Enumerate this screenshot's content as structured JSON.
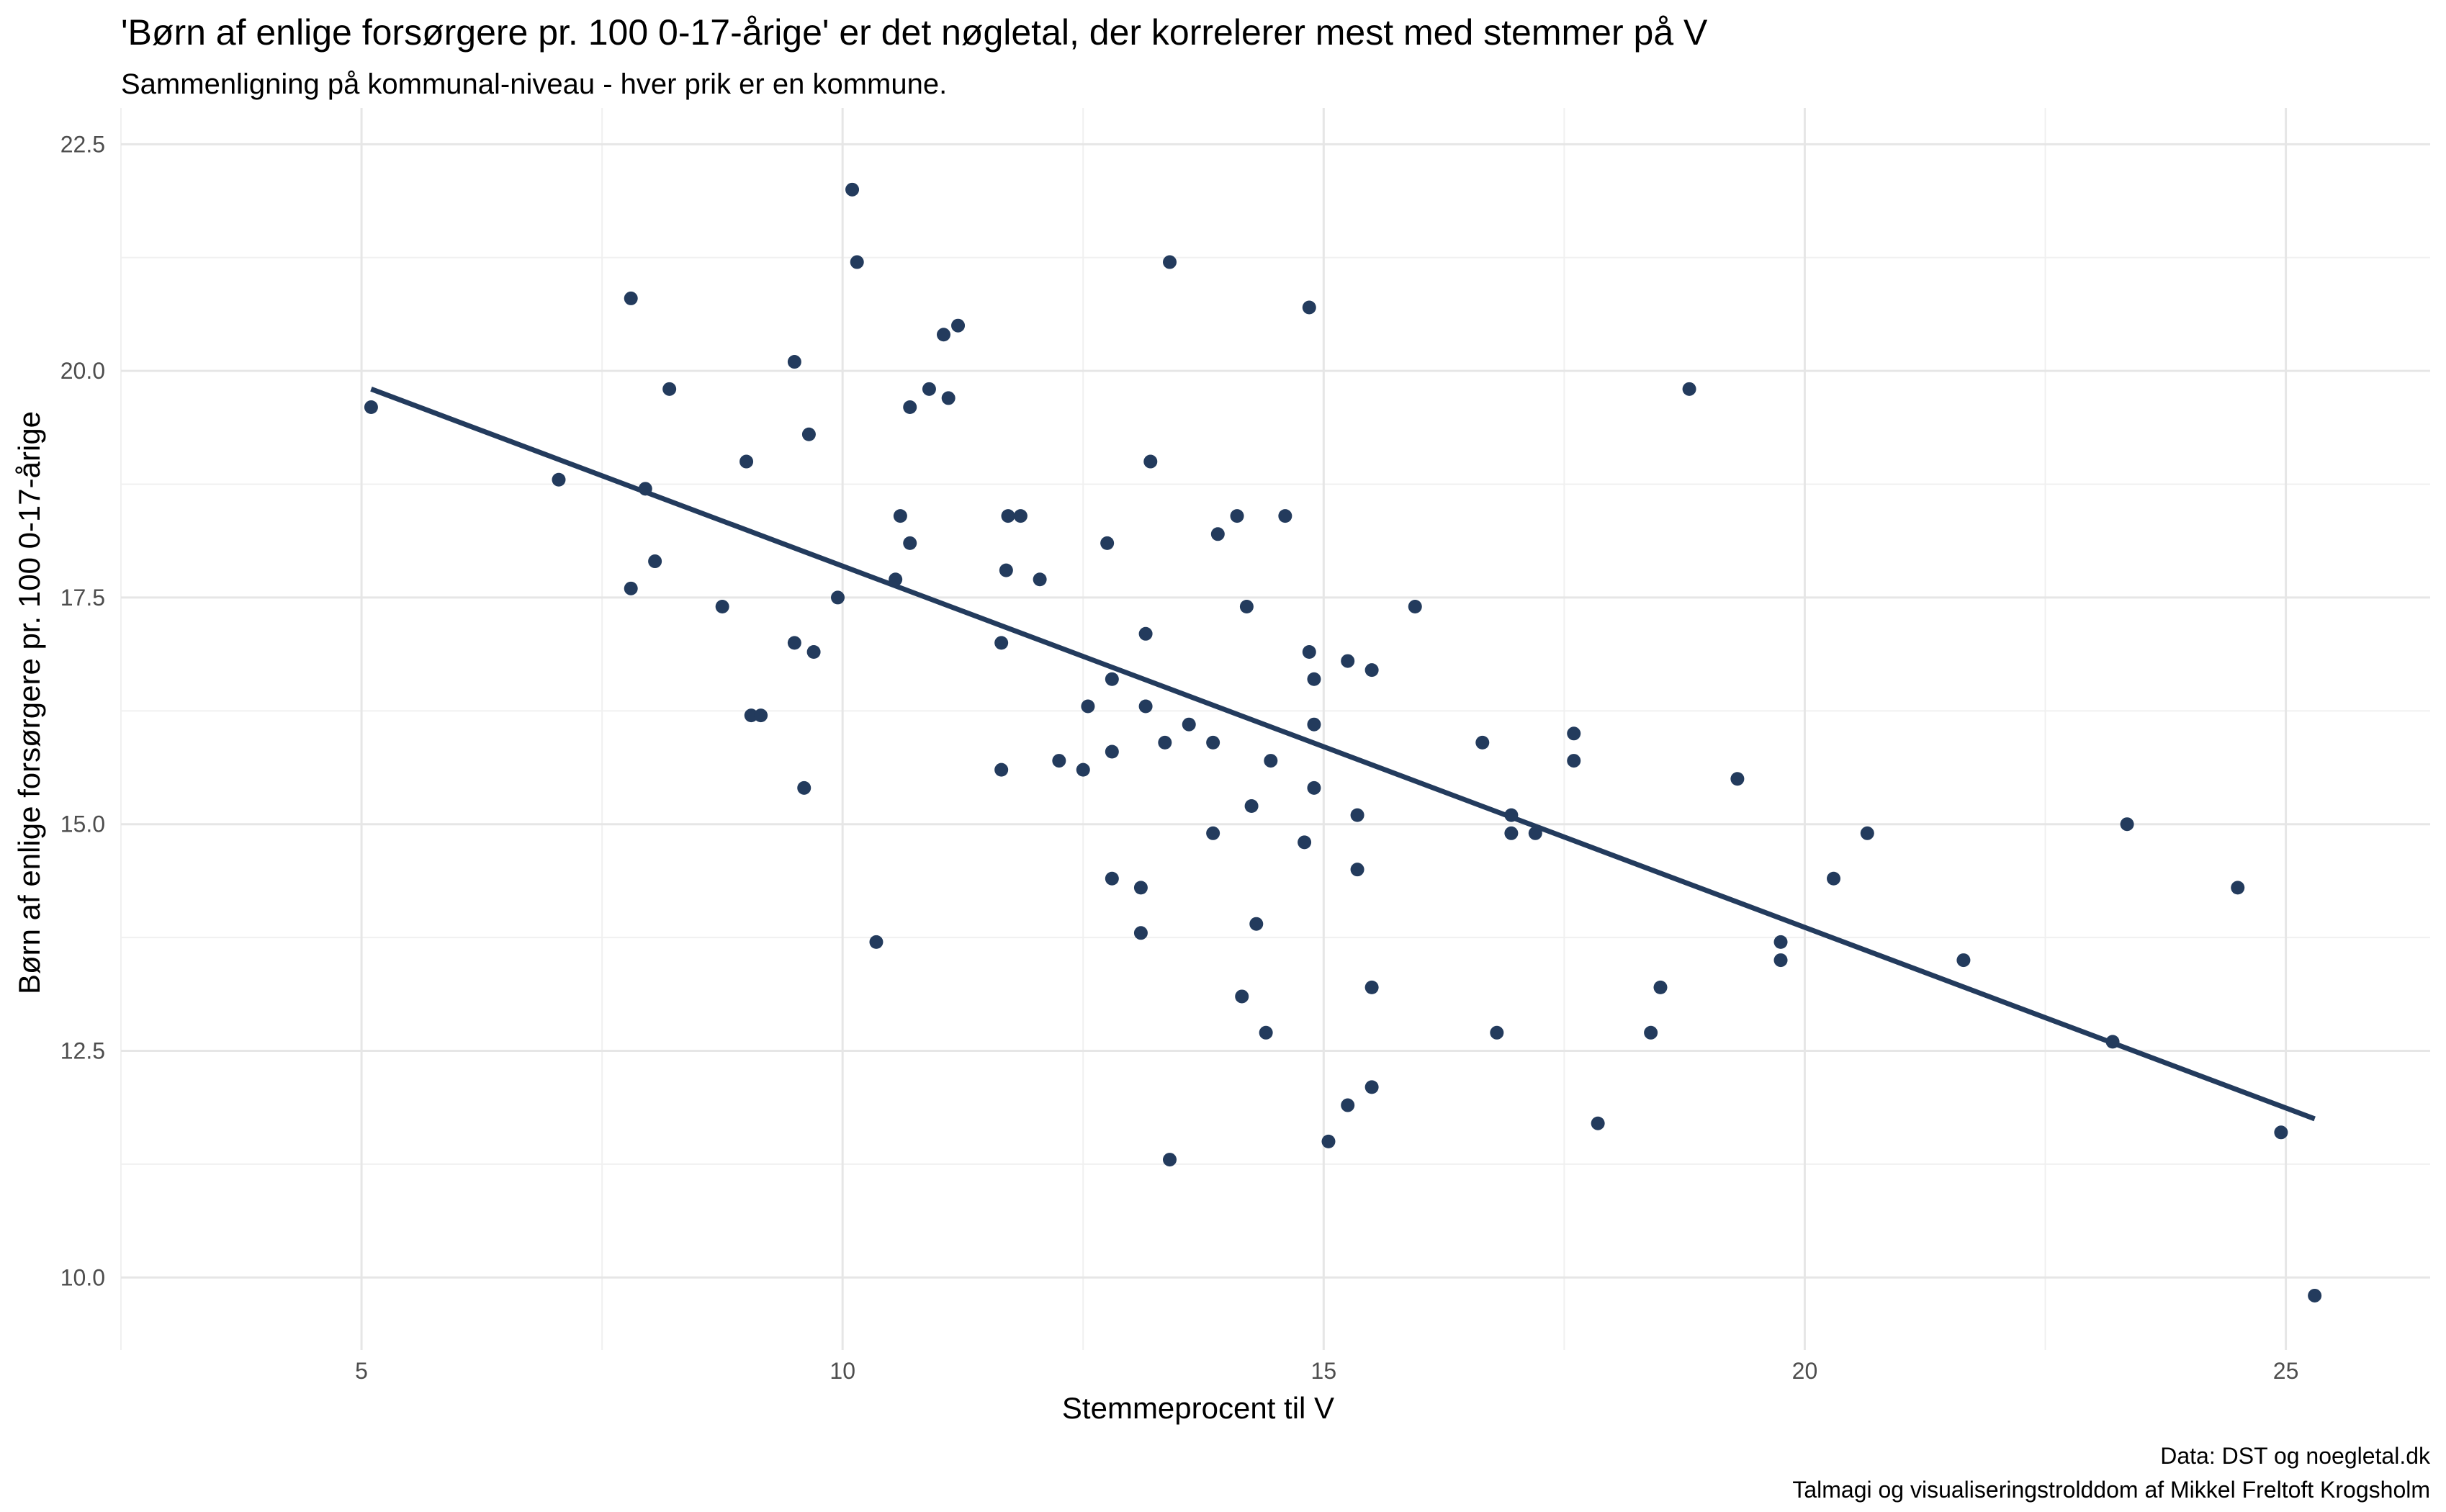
{
  "chart_data": {
    "type": "scatter",
    "title": "'Børn af enlige forsørgere pr. 100 0-17-årige' er det nøgletal, der korrelerer mest med stemmer på V",
    "subtitle": "Sammenligning på kommunal-niveau - hver prik er en kommune.",
    "xlabel": "Stemmeprocent til V",
    "ylabel": "Børn af enlige forsørgere pr. 100 0-17-årige",
    "caption_lines": [
      "Data: DST og noegletal.dk",
      "Talmagi og visualiseringstrolddom af Mikkel Freltoft Krogsholm"
    ],
    "xlim": [
      2.5,
      26.5
    ],
    "ylim": [
      9.2,
      22.9
    ],
    "x_ticks": [
      5,
      10,
      15,
      20,
      25
    ],
    "x_tick_labels": [
      "5",
      "10",
      "15",
      "20",
      "25"
    ],
    "y_ticks": [
      10.0,
      12.5,
      15.0,
      17.5,
      20.0,
      22.5
    ],
    "y_tick_labels": [
      "10.0",
      "12.5",
      "15.0",
      "17.5",
      "20.0",
      "22.5"
    ],
    "grid": true,
    "point_color": "#233B5D",
    "line_color": "#233B5D",
    "trend_line": {
      "x": [
        5.1,
        25.3
      ],
      "y": [
        19.8,
        11.75
      ]
    },
    "points": [
      {
        "x": 5.1,
        "y": 19.6
      },
      {
        "x": 7.05,
        "y": 18.8
      },
      {
        "x": 7.8,
        "y": 20.8
      },
      {
        "x": 7.8,
        "y": 17.6
      },
      {
        "x": 7.95,
        "y": 18.7
      },
      {
        "x": 8.05,
        "y": 17.9
      },
      {
        "x": 8.2,
        "y": 19.8
      },
      {
        "x": 8.75,
        "y": 17.4
      },
      {
        "x": 9.0,
        "y": 19.0
      },
      {
        "x": 9.05,
        "y": 16.2
      },
      {
        "x": 9.15,
        "y": 16.2
      },
      {
        "x": 9.5,
        "y": 20.1
      },
      {
        "x": 9.5,
        "y": 17.0
      },
      {
        "x": 9.6,
        "y": 15.4
      },
      {
        "x": 9.65,
        "y": 19.3
      },
      {
        "x": 9.7,
        "y": 16.9
      },
      {
        "x": 9.95,
        "y": 17.5
      },
      {
        "x": 10.1,
        "y": 22.0
      },
      {
        "x": 10.15,
        "y": 21.2
      },
      {
        "x": 10.35,
        "y": 13.7
      },
      {
        "x": 10.55,
        "y": 17.7
      },
      {
        "x": 10.6,
        "y": 18.4
      },
      {
        "x": 10.7,
        "y": 19.6
      },
      {
        "x": 10.7,
        "y": 18.1
      },
      {
        "x": 10.9,
        "y": 19.8
      },
      {
        "x": 11.05,
        "y": 20.4
      },
      {
        "x": 11.1,
        "y": 19.7
      },
      {
        "x": 11.2,
        "y": 20.5
      },
      {
        "x": 11.65,
        "y": 17.0
      },
      {
        "x": 11.65,
        "y": 15.6
      },
      {
        "x": 11.7,
        "y": 17.8
      },
      {
        "x": 11.72,
        "y": 18.4
      },
      {
        "x": 11.85,
        "y": 18.4
      },
      {
        "x": 12.05,
        "y": 17.7
      },
      {
        "x": 12.25,
        "y": 15.7
      },
      {
        "x": 12.5,
        "y": 15.6
      },
      {
        "x": 12.55,
        "y": 16.3
      },
      {
        "x": 12.75,
        "y": 18.1
      },
      {
        "x": 12.8,
        "y": 16.6
      },
      {
        "x": 12.8,
        "y": 15.8
      },
      {
        "x": 12.8,
        "y": 14.4
      },
      {
        "x": 13.1,
        "y": 14.3
      },
      {
        "x": 13.1,
        "y": 13.8
      },
      {
        "x": 13.15,
        "y": 17.1
      },
      {
        "x": 13.15,
        "y": 16.3
      },
      {
        "x": 13.2,
        "y": 19.0
      },
      {
        "x": 13.35,
        "y": 15.9
      },
      {
        "x": 13.4,
        "y": 21.2
      },
      {
        "x": 13.4,
        "y": 11.3
      },
      {
        "x": 13.6,
        "y": 16.1
      },
      {
        "x": 13.85,
        "y": 15.9
      },
      {
        "x": 13.85,
        "y": 14.9
      },
      {
        "x": 13.9,
        "y": 18.2
      },
      {
        "x": 14.1,
        "y": 18.4
      },
      {
        "x": 14.15,
        "y": 13.1
      },
      {
        "x": 14.2,
        "y": 17.4
      },
      {
        "x": 14.25,
        "y": 15.2
      },
      {
        "x": 14.3,
        "y": 13.9
      },
      {
        "x": 14.4,
        "y": 12.7
      },
      {
        "x": 14.45,
        "y": 15.7
      },
      {
        "x": 14.6,
        "y": 18.4
      },
      {
        "x": 14.8,
        "y": 14.8
      },
      {
        "x": 14.85,
        "y": 20.7
      },
      {
        "x": 14.85,
        "y": 16.9
      },
      {
        "x": 14.9,
        "y": 16.6
      },
      {
        "x": 14.9,
        "y": 16.1
      },
      {
        "x": 14.9,
        "y": 15.4
      },
      {
        "x": 15.05,
        "y": 11.5
      },
      {
        "x": 15.25,
        "y": 16.8
      },
      {
        "x": 15.25,
        "y": 11.9
      },
      {
        "x": 15.35,
        "y": 15.1
      },
      {
        "x": 15.35,
        "y": 14.5
      },
      {
        "x": 15.5,
        "y": 16.7
      },
      {
        "x": 15.5,
        "y": 13.2
      },
      {
        "x": 15.5,
        "y": 12.1
      },
      {
        "x": 15.95,
        "y": 17.4
      },
      {
        "x": 16.65,
        "y": 15.9
      },
      {
        "x": 16.8,
        "y": 12.7
      },
      {
        "x": 16.95,
        "y": 15.1
      },
      {
        "x": 16.95,
        "y": 14.9
      },
      {
        "x": 17.2,
        "y": 14.9
      },
      {
        "x": 17.6,
        "y": 16.0
      },
      {
        "x": 17.6,
        "y": 15.7
      },
      {
        "x": 17.85,
        "y": 11.7
      },
      {
        "x": 18.4,
        "y": 12.7
      },
      {
        "x": 18.5,
        "y": 13.2
      },
      {
        "x": 18.8,
        "y": 19.8
      },
      {
        "x": 19.3,
        "y": 15.5
      },
      {
        "x": 19.75,
        "y": 13.7
      },
      {
        "x": 19.75,
        "y": 13.5
      },
      {
        "x": 20.3,
        "y": 14.4
      },
      {
        "x": 20.65,
        "y": 14.9
      },
      {
        "x": 21.65,
        "y": 13.5
      },
      {
        "x": 23.2,
        "y": 12.6
      },
      {
        "x": 23.35,
        "y": 15.0
      },
      {
        "x": 24.5,
        "y": 14.3
      },
      {
        "x": 24.95,
        "y": 11.6
      },
      {
        "x": 25.3,
        "y": 9.8
      }
    ]
  }
}
